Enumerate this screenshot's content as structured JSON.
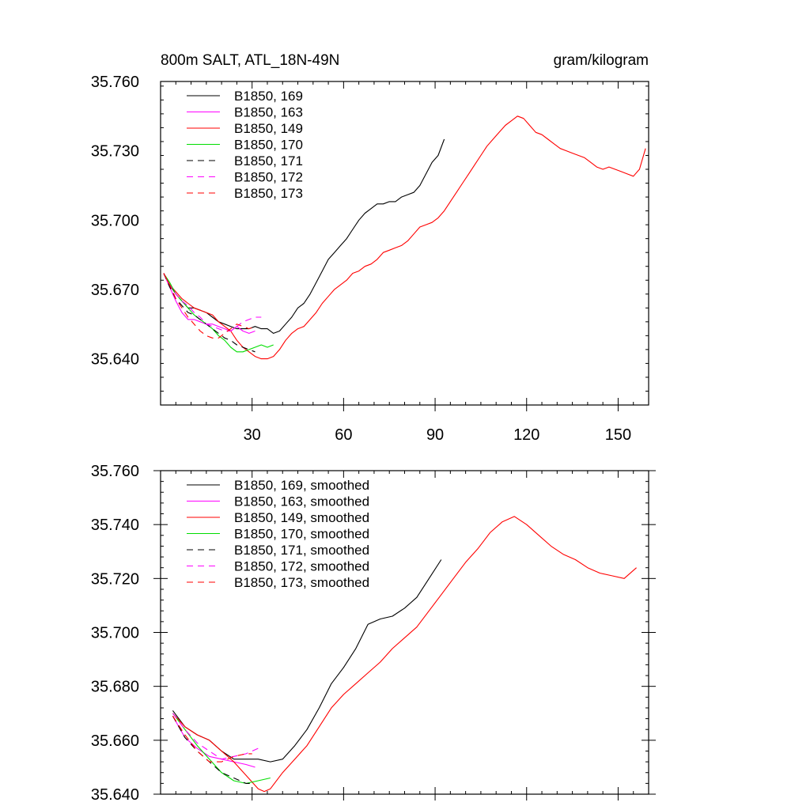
{
  "chart_data": [
    {
      "type": "line",
      "title_left": "800m SALT, ATL_18N-49N",
      "title_right": "gram/kilogram",
      "xlim": [
        0,
        160
      ],
      "ylim": [
        35.62,
        35.76
      ],
      "x_ticks": [
        30,
        60,
        90,
        120,
        150
      ],
      "x_tick_labels": [
        "30",
        "60",
        "90",
        "120",
        "150"
      ],
      "y_ticks": [
        35.64,
        35.67,
        35.7,
        35.73,
        35.76
      ],
      "y_tick_labels": [
        "35.640",
        "35.670",
        "35.700",
        "35.730",
        "35.760"
      ],
      "legend_position": "top-left",
      "series": [
        {
          "name": "B1850, 169",
          "color": "#000000",
          "dash": "solid",
          "x": [
            1,
            3,
            5,
            7,
            9,
            11,
            13,
            15,
            17,
            19,
            21,
            23,
            25,
            27,
            29,
            31,
            33,
            35,
            37,
            39,
            41,
            43,
            45,
            47,
            49,
            51,
            53,
            55,
            57,
            59,
            61,
            63,
            65,
            67,
            69,
            71,
            73,
            75,
            77,
            79,
            81,
            83,
            85,
            87,
            89,
            91,
            93
          ],
          "y": [
            35.677,
            35.672,
            35.668,
            35.665,
            35.662,
            35.662,
            35.661,
            35.66,
            35.658,
            35.656,
            35.655,
            35.654,
            35.653,
            35.653,
            35.653,
            35.654,
            35.653,
            35.653,
            35.651,
            35.652,
            35.655,
            35.658,
            35.662,
            35.664,
            35.668,
            35.673,
            35.678,
            35.683,
            35.686,
            35.689,
            35.692,
            35.696,
            35.7,
            35.703,
            35.705,
            35.707,
            35.707,
            35.708,
            35.708,
            35.71,
            35.711,
            35.712,
            35.715,
            35.72,
            35.725,
            35.728,
            35.735
          ]
        },
        {
          "name": "B1850, 163",
          "color": "#ff00ff",
          "dash": "solid",
          "x": [
            1,
            3,
            5,
            7,
            9,
            11,
            13,
            15,
            17,
            19,
            21,
            23,
            25,
            27,
            29,
            31
          ],
          "y": [
            35.677,
            35.671,
            35.665,
            35.66,
            35.657,
            35.657,
            35.656,
            35.655,
            35.655,
            35.654,
            35.653,
            35.652,
            35.654,
            35.652,
            35.651,
            35.652
          ]
        },
        {
          "name": "B1850, 149",
          "color": "#ff0000",
          "dash": "solid",
          "x": [
            1,
            3,
            5,
            7,
            9,
            11,
            13,
            15,
            17,
            19,
            21,
            23,
            25,
            27,
            29,
            31,
            33,
            35,
            37,
            39,
            41,
            43,
            45,
            47,
            49,
            51,
            53,
            55,
            57,
            59,
            61,
            63,
            65,
            67,
            69,
            71,
            73,
            75,
            77,
            79,
            81,
            83,
            85,
            87,
            89,
            91,
            93,
            95,
            97,
            99,
            101,
            103,
            105,
            107,
            109,
            111,
            113,
            115,
            117,
            119,
            121,
            123,
            125,
            127,
            129,
            131,
            133,
            135,
            137,
            139,
            141,
            143,
            145,
            147,
            149,
            151,
            153,
            155,
            157,
            159
          ],
          "y": [
            35.677,
            35.672,
            35.669,
            35.666,
            35.664,
            35.662,
            35.661,
            35.66,
            35.659,
            35.656,
            35.654,
            35.652,
            35.648,
            35.645,
            35.643,
            35.641,
            35.64,
            35.64,
            35.641,
            35.644,
            35.648,
            35.651,
            35.653,
            35.654,
            35.657,
            35.66,
            35.664,
            35.667,
            35.67,
            35.672,
            35.674,
            35.677,
            35.678,
            35.68,
            35.681,
            35.683,
            35.686,
            35.687,
            35.688,
            35.689,
            35.691,
            35.694,
            35.697,
            35.698,
            35.699,
            35.701,
            35.704,
            35.708,
            35.712,
            35.716,
            35.72,
            35.724,
            35.728,
            35.732,
            35.735,
            35.738,
            35.741,
            35.743,
            35.745,
            35.744,
            35.741,
            35.738,
            35.737,
            35.735,
            35.733,
            35.731,
            35.73,
            35.729,
            35.728,
            35.727,
            35.725,
            35.723,
            35.722,
            35.723,
            35.722,
            35.721,
            35.72,
            35.719,
            35.722,
            35.731
          ]
        },
        {
          "name": "B1850, 170",
          "color": "#00dd00",
          "dash": "solid",
          "x": [
            1,
            3,
            5,
            7,
            9,
            11,
            13,
            15,
            17,
            19,
            21,
            23,
            25,
            27,
            29,
            31,
            33,
            35,
            37
          ],
          "y": [
            35.677,
            35.673,
            35.668,
            35.665,
            35.662,
            35.659,
            35.657,
            35.655,
            35.653,
            35.65,
            35.648,
            35.645,
            35.643,
            35.643,
            35.644,
            35.645,
            35.646,
            35.645,
            35.646
          ]
        },
        {
          "name": "B1850, 171",
          "color": "#000000",
          "dash": "dashed",
          "x": [
            1,
            3,
            5,
            7,
            9,
            11,
            13,
            15,
            17,
            19,
            21,
            23,
            25,
            27,
            29,
            31
          ],
          "y": [
            35.677,
            35.671,
            35.666,
            35.663,
            35.66,
            35.659,
            35.657,
            35.655,
            35.653,
            35.651,
            35.649,
            35.648,
            35.646,
            35.645,
            35.644,
            35.643
          ]
        },
        {
          "name": "B1850, 172",
          "color": "#ff00ff",
          "dash": "dashed",
          "x": [
            1,
            3,
            5,
            7,
            9,
            11,
            13,
            15,
            17,
            19,
            21,
            23,
            25,
            27,
            29,
            31,
            33
          ],
          "y": [
            35.677,
            35.672,
            35.668,
            35.665,
            35.663,
            35.66,
            35.658,
            35.655,
            35.654,
            35.653,
            35.652,
            35.652,
            35.654,
            35.656,
            35.657,
            35.658,
            35.658
          ]
        },
        {
          "name": "B1850, 173",
          "color": "#ff0000",
          "dash": "dashed",
          "x": [
            1,
            3,
            5,
            7,
            9,
            11,
            13,
            15,
            17,
            19,
            21,
            23,
            25,
            27,
            29,
            31
          ],
          "y": [
            35.677,
            35.672,
            35.666,
            35.662,
            35.658,
            35.655,
            35.652,
            35.65,
            35.649,
            35.649,
            35.651,
            35.653,
            35.655,
            35.654,
            35.653,
            35.654
          ]
        }
      ]
    },
    {
      "type": "line",
      "xlim": [
        0,
        160
      ],
      "ylim": [
        35.64,
        35.76
      ],
      "x_ticks": [
        30,
        60,
        90,
        120,
        150
      ],
      "y_ticks": [
        35.64,
        35.66,
        35.68,
        35.7,
        35.72,
        35.74,
        35.76
      ],
      "y_tick_labels": [
        "35.640",
        "35.660",
        "35.680",
        "35.700",
        "35.720",
        "35.740",
        "35.760"
      ],
      "legend_position": "top-left",
      "series": [
        {
          "name": "B1850, 169, smoothed",
          "color": "#000000",
          "dash": "solid",
          "x": [
            4,
            8,
            12,
            16,
            20,
            24,
            28,
            32,
            36,
            40,
            44,
            48,
            52,
            56,
            60,
            64,
            68,
            72,
            76,
            80,
            84,
            88,
            92
          ],
          "y": [
            35.671,
            35.665,
            35.662,
            35.66,
            35.656,
            35.653,
            35.653,
            35.653,
            35.652,
            35.653,
            35.658,
            35.664,
            35.672,
            35.681,
            35.687,
            35.694,
            35.703,
            35.705,
            35.706,
            35.709,
            35.713,
            35.72,
            35.727
          ]
        },
        {
          "name": "B1850, 163, smoothed",
          "color": "#ff00ff",
          "dash": "solid",
          "x": [
            4,
            8,
            12,
            16,
            20,
            24,
            28,
            31
          ],
          "y": [
            35.669,
            35.661,
            35.657,
            35.654,
            35.653,
            35.652,
            35.651,
            35.65
          ]
        },
        {
          "name": "B1850, 149, smoothed",
          "color": "#ff0000",
          "dash": "solid",
          "x": [
            4,
            8,
            12,
            16,
            20,
            24,
            28,
            32,
            34,
            36,
            40,
            44,
            48,
            52,
            56,
            60,
            64,
            68,
            72,
            76,
            80,
            84,
            88,
            92,
            96,
            100,
            104,
            108,
            112,
            116,
            120,
            124,
            128,
            132,
            136,
            140,
            144,
            148,
            152,
            156
          ],
          "y": [
            35.67,
            35.665,
            35.662,
            35.66,
            35.656,
            35.652,
            35.647,
            35.642,
            35.641,
            35.642,
            35.648,
            35.653,
            35.658,
            35.665,
            35.672,
            35.677,
            35.681,
            35.685,
            35.689,
            35.694,
            35.698,
            35.702,
            35.708,
            35.714,
            35.72,
            35.726,
            35.731,
            35.737,
            35.741,
            35.743,
            35.74,
            35.736,
            35.732,
            35.729,
            35.727,
            35.724,
            35.722,
            35.721,
            35.72,
            35.724
          ]
        },
        {
          "name": "B1850, 170, smoothed",
          "color": "#00dd00",
          "dash": "solid",
          "x": [
            4,
            8,
            12,
            16,
            20,
            24,
            28,
            32,
            36
          ],
          "y": [
            35.67,
            35.664,
            35.658,
            35.653,
            35.648,
            35.645,
            35.644,
            35.645,
            35.646
          ]
        },
        {
          "name": "B1850, 171, smoothed",
          "color": "#000000",
          "dash": "dashed",
          "x": [
            4,
            8,
            12,
            16,
            20,
            24,
            28,
            30
          ],
          "y": [
            35.669,
            35.661,
            35.656,
            35.652,
            35.648,
            35.646,
            35.644,
            35.644
          ]
        },
        {
          "name": "B1850, 172, smoothed",
          "color": "#ff00ff",
          "dash": "dashed",
          "x": [
            4,
            8,
            12,
            16,
            20,
            24,
            28,
            32
          ],
          "y": [
            35.67,
            35.664,
            35.659,
            35.656,
            35.653,
            35.654,
            35.655,
            35.657
          ]
        },
        {
          "name": "B1850, 173, smoothed",
          "color": "#ff0000",
          "dash": "dashed",
          "x": [
            4,
            8,
            12,
            16,
            20,
            24,
            28,
            30
          ],
          "y": [
            35.669,
            35.662,
            35.656,
            35.652,
            35.652,
            35.654,
            35.655,
            35.655
          ]
        }
      ]
    }
  ]
}
